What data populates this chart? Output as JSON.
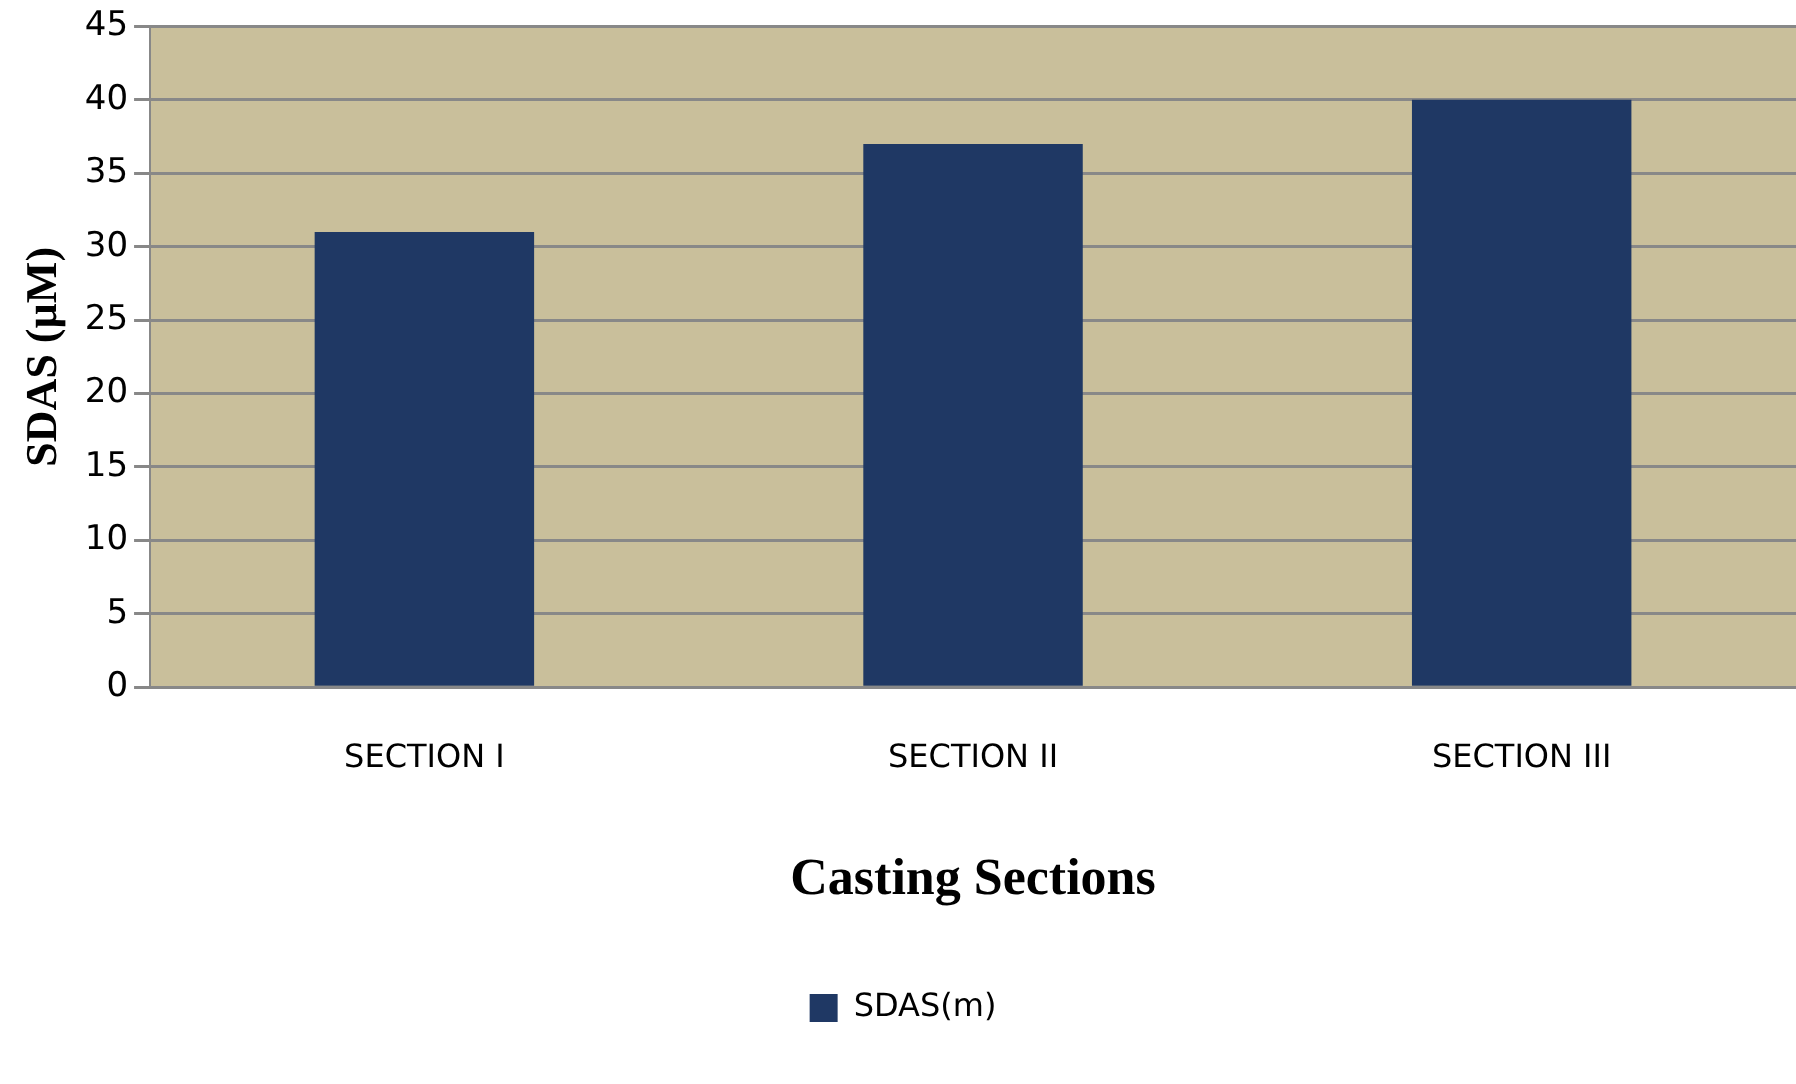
{
  "chart_data": {
    "type": "bar",
    "xlabel": "Casting Sections",
    "ylabel": "SDAS (µM)",
    "categories": [
      "SECTION I",
      "SECTION II",
      "SECTION III"
    ],
    "series": [
      {
        "name": "SDAS(m)",
        "color": "#1f3864",
        "values": [
          31,
          37,
          40
        ]
      }
    ],
    "ylim": [
      0,
      45
    ],
    "yticks": [
      0,
      5,
      10,
      15,
      20,
      25,
      30,
      35,
      40,
      45
    ],
    "grid": "y",
    "legend": "bottom"
  }
}
